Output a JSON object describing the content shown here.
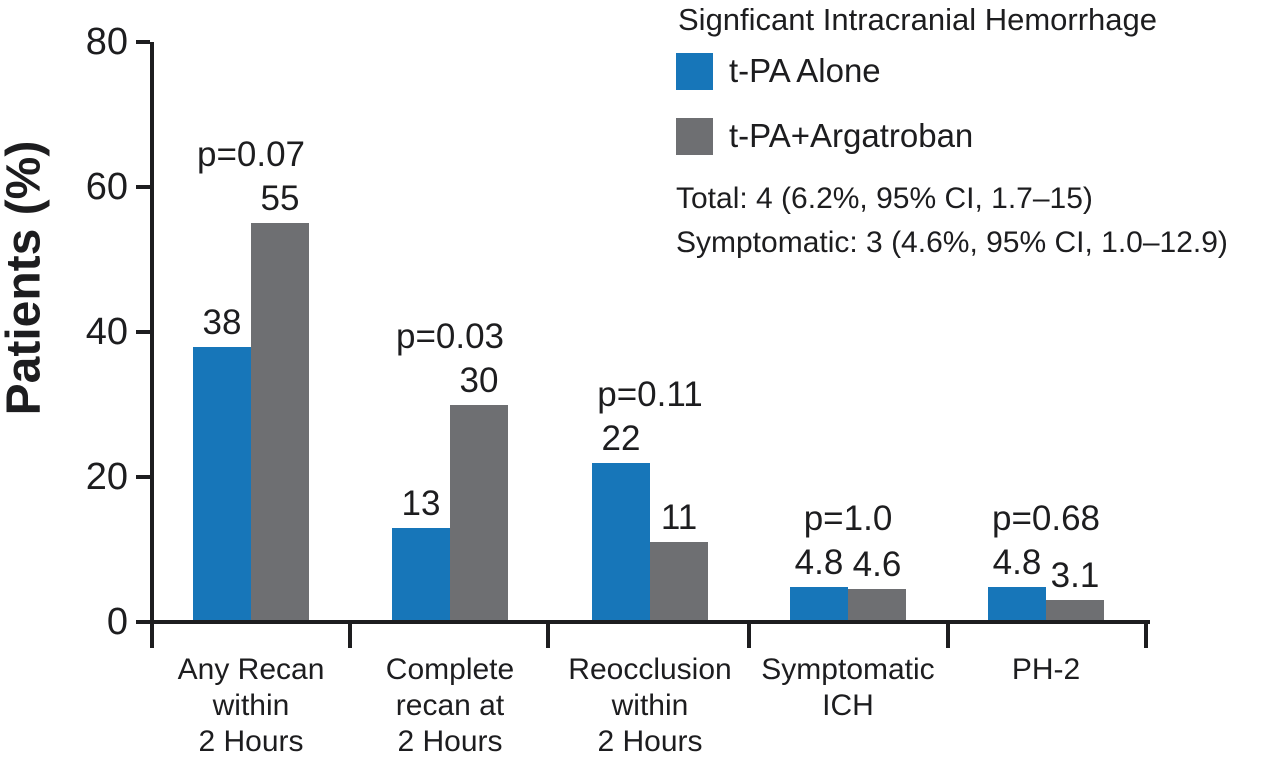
{
  "chart_data": {
    "type": "bar",
    "title": "",
    "xlabel": "",
    "ylabel": "Patients (%)",
    "ylim": [
      0,
      80
    ],
    "yticks": [
      0,
      20,
      40,
      60,
      80
    ],
    "grid": false,
    "legend_position": "top-right",
    "categories": [
      "Any Recan\nwithin\n2 Hours",
      "Complete\nrecan at\n2 Hours",
      "Reocclusion\nwithin\n2 Hours",
      "Symptomatic\nICH",
      "PH-2"
    ],
    "series": [
      {
        "name": "t-PA Alone",
        "color": "#1776b9",
        "values": [
          38,
          13,
          22,
          4.8,
          4.8
        ]
      },
      {
        "name": "t-PA+Argatroban",
        "color": "#6e6f72",
        "values": [
          55,
          30,
          11,
          4.6,
          3.1
        ]
      }
    ],
    "p_values": [
      "p=0.07",
      "p=0.03",
      "p=0.11",
      "p=1.0",
      "p=0.68"
    ],
    "annotations": [
      "Total: 4 (6.2%, 95% CI, 1.7–15)",
      "Symptomatic: 3 (4.6%, 95% CI, 1.0–12.9)"
    ]
  },
  "legend": {
    "title": "Signficant Intracranial Hemorrhage",
    "items": [
      {
        "label": "t-PA Alone",
        "color": "#1776b9"
      },
      {
        "label": "t-PA+Argatroban",
        "color": "#6e6f72"
      }
    ],
    "notes": [
      "Total: 4 (6.2%, 95% CI, 1.7–15)",
      "Symptomatic: 3 (4.6%, 95% CI, 1.0–12.9)"
    ]
  },
  "colors": {
    "bar_blue": "#1776b9",
    "bar_gray": "#6e6f72",
    "text": "#1d1d1f"
  }
}
